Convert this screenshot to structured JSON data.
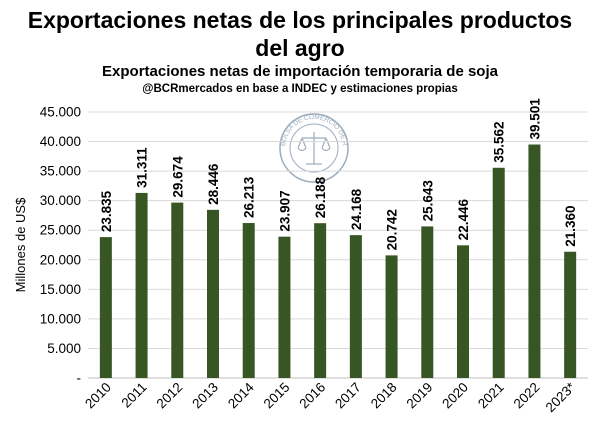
{
  "header": {
    "title_line1": "Exportaciones netas de los principales productos",
    "title_line2": "del agro",
    "subtitle": "Exportaciones netas de importación temporaria de soja",
    "source": "@BCRmercados  en base a INDEC y estimaciones propias"
  },
  "logo": {
    "text": "BOLSA DE COMERCIO DE ROSARIO"
  },
  "colors": {
    "bar": "#375623",
    "grid": "#d9d9d9",
    "axis": "#bfbfbf"
  },
  "chart_data": {
    "type": "bar",
    "title": "Exportaciones netas de los principales productos del agro",
    "ylabel": "Millones de US$",
    "xlabel": "",
    "ylim": [
      0,
      45000
    ],
    "yticks": [
      {
        "value": 0,
        "label": "-"
      },
      {
        "value": 5000,
        "label": "5.000"
      },
      {
        "value": 10000,
        "label": "10.000"
      },
      {
        "value": 15000,
        "label": "15.000"
      },
      {
        "value": 20000,
        "label": "20.000"
      },
      {
        "value": 25000,
        "label": "25.000"
      },
      {
        "value": 30000,
        "label": "30.000"
      },
      {
        "value": 35000,
        "label": "35.000"
      },
      {
        "value": 40000,
        "label": "40.000"
      },
      {
        "value": 45000,
        "label": "45.000"
      }
    ],
    "grid": true,
    "categories": [
      "2010",
      "2011",
      "2012",
      "2013",
      "2014",
      "2015",
      "2016",
      "2017",
      "2018",
      "2019",
      "2020",
      "2021",
      "2022",
      "2023*"
    ],
    "values": [
      23835,
      31311,
      29674,
      28446,
      26213,
      23907,
      26188,
      24168,
      20742,
      25643,
      22446,
      35562,
      39501,
      21360
    ],
    "value_labels": [
      "23.835",
      "31.311",
      "29.674",
      "28.446",
      "26.213",
      "23.907",
      "26.188",
      "24.168",
      "20.742",
      "25.643",
      "22.446",
      "35.562",
      "39.501",
      "21.360"
    ]
  }
}
